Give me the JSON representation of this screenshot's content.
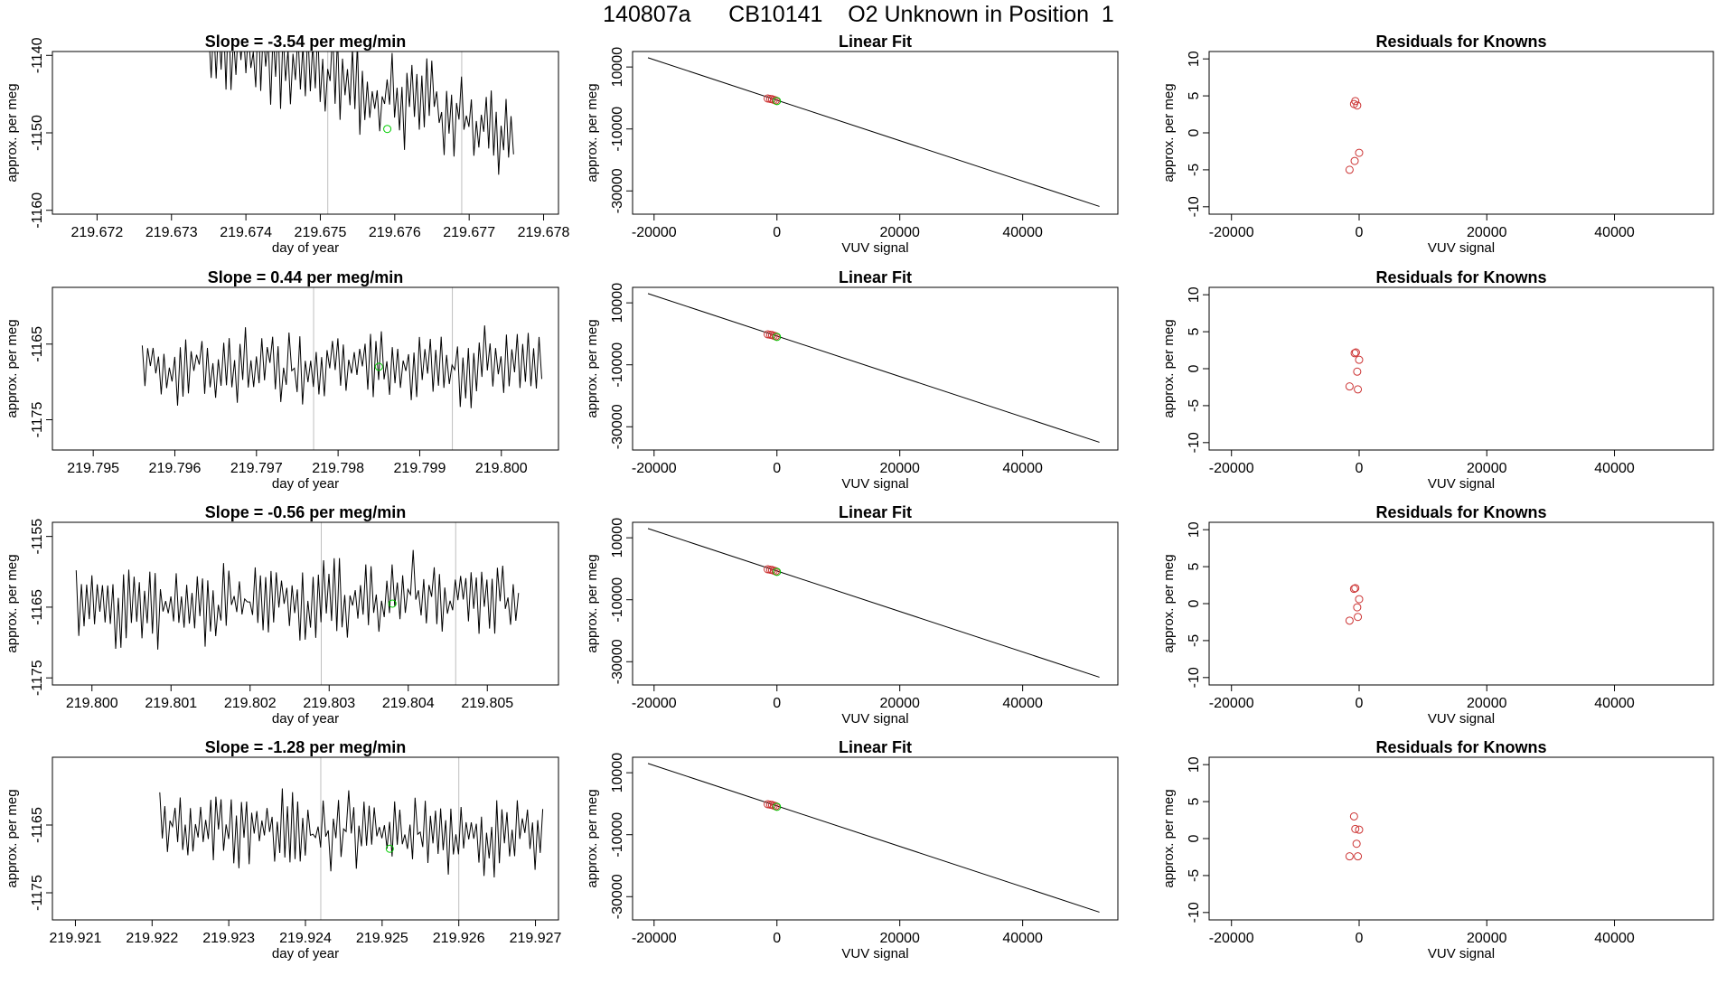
{
  "page_title": "140807a      CB10141    O2 Unknown in Position  1",
  "colors": {
    "line": "#000000",
    "unknown_point": "#00cc00",
    "known_point": "#cc3333",
    "marker_line": "#bfbfbf",
    "frame": "#000000"
  },
  "chart_data": [
    {
      "type": "line",
      "panel": "time-series",
      "row": 0,
      "title": "Slope =  -3.54  per meg/min",
      "xlabel": "day of year",
      "ylabel": "approx. per meg",
      "xlim": [
        219.6714,
        219.6782
      ],
      "ylim": [
        -1160.5,
        -1139.5
      ],
      "xticks": [
        219.672,
        219.673,
        219.674,
        219.675,
        219.676,
        219.677,
        219.678
      ],
      "xtick_labels": [
        "219.672",
        "219.673",
        "219.674",
        "219.675",
        "219.676",
        "219.677",
        "219.678"
      ],
      "yticks": [
        -1160,
        -1150,
        -1140
      ],
      "ytick_labels": [
        "-1160",
        "-1150",
        "-1140"
      ],
      "series_x_start": 219.6735,
      "series_x_end": 219.6776,
      "series_step": 3.33e-05,
      "series_start_level": -1138,
      "series_end_level": -1150,
      "series_noise": 4.5,
      "series_seed": 3,
      "marker_x": [
        219.6751,
        219.6769
      ],
      "unknown_point": {
        "x": 219.6759,
        "y": -1149.5
      }
    },
    {
      "type": "scatter",
      "panel": "linear-fit",
      "row": 0,
      "title": "Linear Fit",
      "xlabel": "VUV signal",
      "ylabel": "approx. per meg",
      "xlim": [
        -23500,
        55500
      ],
      "ylim": [
        -37500,
        15000
      ],
      "xticks": [
        -20000,
        0,
        20000,
        40000
      ],
      "xtick_labels": [
        "-20000",
        "0",
        "20000",
        "40000"
      ],
      "yticks": [
        -30000,
        -10000,
        10000
      ],
      "ytick_labels": [
        "-30000",
        "-10000",
        "10000"
      ],
      "fit_line": {
        "x": [
          -21000,
          52500
        ],
        "y": [
          13000,
          -35000
        ]
      },
      "knowns": {
        "x": [
          -1500,
          -1100,
          -800,
          -500,
          -200
        ],
        "y": [
          -150,
          -300,
          -400,
          -600,
          -800
        ]
      },
      "unknown": {
        "x": [
          0
        ],
        "y": [
          -1000
        ]
      }
    },
    {
      "type": "scatter",
      "panel": "residuals",
      "row": 0,
      "title": "Residuals for Knowns",
      "xlabel": "VUV signal",
      "ylabel": "approx. per meg",
      "xlim": [
        -23500,
        55500
      ],
      "ylim": [
        -11,
        11
      ],
      "xticks": [
        -20000,
        0,
        20000,
        40000
      ],
      "xtick_labels": [
        "-20000",
        "0",
        "20000",
        "40000"
      ],
      "yticks": [
        -10,
        -5,
        0,
        5,
        10
      ],
      "ytick_labels": [
        "-10",
        "-5",
        "0",
        "5",
        "10"
      ],
      "points": {
        "x": [
          -800,
          -600,
          -300,
          -1500,
          -700,
          0
        ],
        "y": [
          3.9,
          4.3,
          3.7,
          -5.0,
          -3.8,
          -2.7
        ]
      }
    },
    {
      "type": "line",
      "panel": "time-series",
      "row": 1,
      "title": "Slope =  0.44  per meg/min",
      "xlabel": "day of year",
      "ylabel": "approx. per meg",
      "xlim": [
        219.7945,
        219.8007
      ],
      "ylim": [
        -1179,
        -1157.5
      ],
      "xticks": [
        219.795,
        219.796,
        219.797,
        219.798,
        219.799,
        219.8
      ],
      "xtick_labels": [
        "219.795",
        "219.796",
        "219.797",
        "219.798",
        "219.799",
        "219.800"
      ],
      "yticks": [
        -1175,
        -1165
      ],
      "ytick_labels": [
        "-1175",
        "-1165"
      ],
      "series_x_start": 219.7956,
      "series_x_end": 219.8005,
      "series_step": 3.33e-05,
      "series_start_level": -1168,
      "series_end_level": -1168,
      "series_noise": 4.0,
      "series_seed": 7,
      "marker_x": [
        219.7977,
        219.7994
      ],
      "unknown_point": {
        "x": 219.7985,
        "y": -1168
      }
    },
    {
      "type": "scatter",
      "panel": "linear-fit",
      "row": 1,
      "title": "Linear Fit",
      "xlabel": "VUV signal",
      "ylabel": "approx. per meg",
      "xlim": [
        -23500,
        55500
      ],
      "ylim": [
        -37500,
        15000
      ],
      "xticks": [
        -20000,
        0,
        20000,
        40000
      ],
      "xtick_labels": [
        "-20000",
        "0",
        "20000",
        "40000"
      ],
      "yticks": [
        -30000,
        -10000,
        10000
      ],
      "ytick_labels": [
        "-30000",
        "-10000",
        "10000"
      ],
      "fit_line": {
        "x": [
          -21000,
          52500
        ],
        "y": [
          13000,
          -35000
        ]
      },
      "knowns": {
        "x": [
          -1500,
          -1100,
          -800,
          -500,
          -200
        ],
        "y": [
          -150,
          -300,
          -400,
          -600,
          -800
        ]
      },
      "unknown": {
        "x": [
          0
        ],
        "y": [
          -1000
        ]
      }
    },
    {
      "type": "scatter",
      "panel": "residuals",
      "row": 1,
      "title": "Residuals for Knowns",
      "xlabel": "VUV signal",
      "ylabel": "approx. per meg",
      "xlim": [
        -23500,
        55500
      ],
      "ylim": [
        -11,
        11
      ],
      "xticks": [
        -20000,
        0,
        20000,
        40000
      ],
      "xtick_labels": [
        "-20000",
        "0",
        "20000",
        "40000"
      ],
      "yticks": [
        -10,
        -5,
        0,
        5,
        10
      ],
      "ytick_labels": [
        "-10",
        "-5",
        "0",
        "5",
        "10"
      ],
      "points": {
        "x": [
          -700,
          -500,
          0,
          -300,
          -1500,
          -200
        ],
        "y": [
          2.1,
          2.2,
          1.2,
          -0.4,
          -2.4,
          -2.8
        ]
      }
    },
    {
      "type": "line",
      "panel": "time-series",
      "row": 2,
      "title": "Slope =  -0.56  per meg/min",
      "xlabel": "day of year",
      "ylabel": "approx. per meg",
      "xlim": [
        219.7995,
        219.8059
      ],
      "ylim": [
        -1176,
        -1153
      ],
      "xticks": [
        219.8,
        219.801,
        219.802,
        219.803,
        219.804,
        219.805
      ],
      "xtick_labels": [
        "219.800",
        "219.801",
        "219.802",
        "219.803",
        "219.804",
        "219.805"
      ],
      "yticks": [
        -1175,
        -1165,
        -1155
      ],
      "ytick_labels": [
        "-1175",
        "-1165",
        "-1155"
      ],
      "series_x_start": 219.7998,
      "series_x_end": 219.8054,
      "series_step": 3.33e-05,
      "series_start_level": -1165,
      "series_end_level": -1163,
      "series_noise": 4.5,
      "series_seed": 11,
      "marker_x": [
        219.8029,
        219.8046
      ],
      "unknown_point": {
        "x": 219.8038,
        "y": -1164.5
      }
    },
    {
      "type": "scatter",
      "panel": "linear-fit",
      "row": 2,
      "title": "Linear Fit",
      "xlabel": "VUV signal",
      "ylabel": "approx. per meg",
      "xlim": [
        -23500,
        55500
      ],
      "ylim": [
        -37500,
        15000
      ],
      "xticks": [
        -20000,
        0,
        20000,
        40000
      ],
      "xtick_labels": [
        "-20000",
        "0",
        "20000",
        "40000"
      ],
      "yticks": [
        -30000,
        -10000,
        10000
      ],
      "ytick_labels": [
        "-30000",
        "-10000",
        "10000"
      ],
      "fit_line": {
        "x": [
          -21000,
          52500
        ],
        "y": [
          13000,
          -35000
        ]
      },
      "knowns": {
        "x": [
          -1500,
          -1100,
          -800,
          -500,
          -200
        ],
        "y": [
          -150,
          -300,
          -400,
          -600,
          -800
        ]
      },
      "unknown": {
        "x": [
          0
        ],
        "y": [
          -1000
        ]
      }
    },
    {
      "type": "scatter",
      "panel": "residuals",
      "row": 2,
      "title": "Residuals for Knowns",
      "xlabel": "VUV signal",
      "ylabel": "approx. per meg",
      "xlim": [
        -23500,
        55500
      ],
      "ylim": [
        -11,
        11
      ],
      "xticks": [
        -20000,
        0,
        20000,
        40000
      ],
      "xtick_labels": [
        "-20000",
        "0",
        "20000",
        "40000"
      ],
      "yticks": [
        -10,
        -5,
        0,
        5,
        10
      ],
      "ytick_labels": [
        "-10",
        "-5",
        "0",
        "5",
        "10"
      ],
      "points": {
        "x": [
          -800,
          -600,
          0,
          -300,
          -1500,
          -200
        ],
        "y": [
          2.0,
          2.1,
          0.6,
          -0.5,
          -2.3,
          -1.8
        ]
      }
    },
    {
      "type": "line",
      "panel": "time-series",
      "row": 3,
      "title": "Slope =  -1.28  per meg/min",
      "xlabel": "day of year",
      "ylabel": "approx. per meg",
      "xlim": [
        219.9207,
        219.9273
      ],
      "ylim": [
        -1179,
        -1155
      ],
      "xticks": [
        219.921,
        219.922,
        219.923,
        219.924,
        219.925,
        219.926,
        219.927
      ],
      "xtick_labels": [
        "219.921",
        "219.922",
        "219.923",
        "219.924",
        "219.925",
        "219.926",
        "219.927"
      ],
      "yticks": [
        -1175,
        -1165
      ],
      "ytick_labels": [
        "-1175",
        "-1165"
      ],
      "series_x_start": 219.9221,
      "series_x_end": 219.9271,
      "series_step": 3.33e-05,
      "series_start_level": -1165,
      "series_end_level": -1167,
      "series_noise": 4.5,
      "series_seed": 19,
      "marker_x": [
        219.9242,
        219.926
      ],
      "unknown_point": {
        "x": 219.9251,
        "y": -1168.5
      }
    },
    {
      "type": "scatter",
      "panel": "linear-fit",
      "row": 3,
      "title": "Linear Fit",
      "xlabel": "VUV signal",
      "ylabel": "approx. per meg",
      "xlim": [
        -23500,
        55500
      ],
      "ylim": [
        -37500,
        15000
      ],
      "xticks": [
        -20000,
        0,
        20000,
        40000
      ],
      "xtick_labels": [
        "-20000",
        "0",
        "20000",
        "40000"
      ],
      "yticks": [
        -30000,
        -10000,
        10000
      ],
      "ytick_labels": [
        "-30000",
        "-10000",
        "10000"
      ],
      "fit_line": {
        "x": [
          -21000,
          52500
        ],
        "y": [
          13000,
          -35000
        ]
      },
      "knowns": {
        "x": [
          -1500,
          -1100,
          -800,
          -500,
          -200
        ],
        "y": [
          -150,
          -300,
          -400,
          -600,
          -800
        ]
      },
      "unknown": {
        "x": [
          0
        ],
        "y": [
          -1000
        ]
      }
    },
    {
      "type": "scatter",
      "panel": "residuals",
      "row": 3,
      "title": "Residuals for Knowns",
      "xlabel": "VUV signal",
      "ylabel": "approx. per meg",
      "xlim": [
        -23500,
        55500
      ],
      "ylim": [
        -11,
        11
      ],
      "xticks": [
        -20000,
        0,
        20000,
        40000
      ],
      "xtick_labels": [
        "-20000",
        "0",
        "20000",
        "40000"
      ],
      "yticks": [
        -10,
        -5,
        0,
        5,
        10
      ],
      "ytick_labels": [
        "-10",
        "-5",
        "0",
        "5",
        "10"
      ],
      "points": {
        "x": [
          -800,
          -600,
          0,
          -400,
          -1500,
          -200
        ],
        "y": [
          3.0,
          1.3,
          1.2,
          -0.7,
          -2.4,
          -2.4
        ]
      }
    }
  ]
}
